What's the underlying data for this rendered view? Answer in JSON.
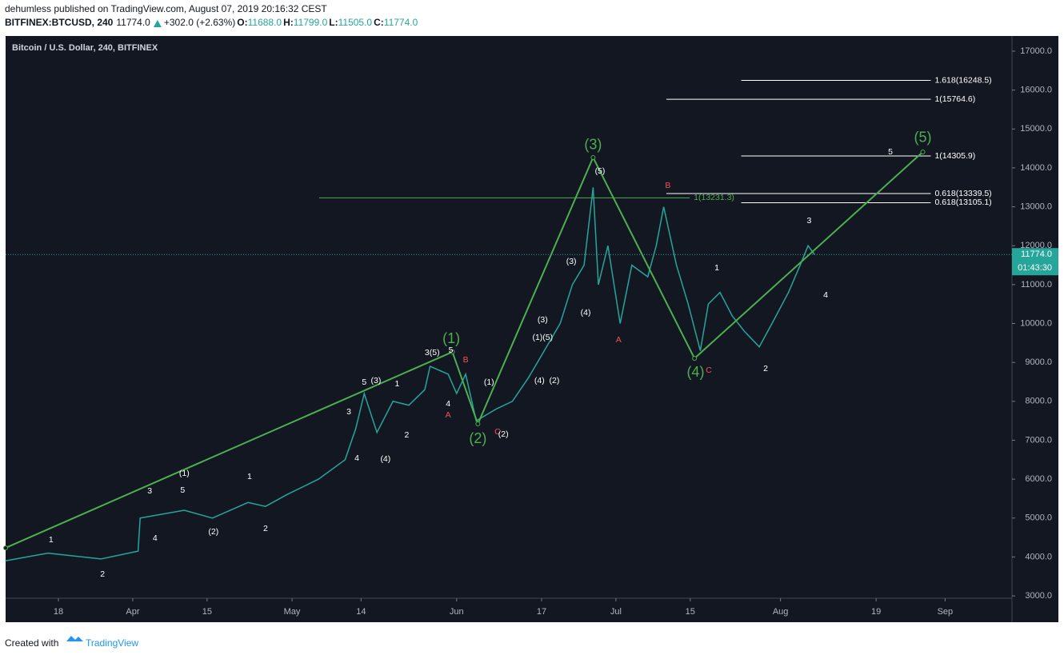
{
  "header": {
    "publisher": "dehumless published on TradingView.com, August 07, 2019 20:16:32 CEST",
    "symbol": "BITFINEX:BTCUSD, 240",
    "price": "11774.0",
    "change": "+302.0 (+2.63%)",
    "ohlc": [
      {
        "key": "O:",
        "value": "11688.0"
      },
      {
        "key": "H:",
        "value": "11799.0"
      },
      {
        "key": "L:",
        "value": "11505.0"
      },
      {
        "key": "C:",
        "value": "11774.0"
      }
    ]
  },
  "footer": {
    "created": "Created with",
    "brand": "TradingView"
  },
  "chart_data": {
    "type": "line",
    "title": "Bitcoin / U.S. Dollar, 240, BITFINEX",
    "color": "#26a69a",
    "x": [
      7,
      15,
      25,
      32,
      32.4,
      40.7,
      46,
      52.7,
      56,
      60,
      66,
      71,
      73,
      74.6,
      77,
      80,
      83,
      86,
      87,
      90.4,
      92,
      93.7,
      95.7,
      99.4,
      102.5,
      105.5,
      108.5,
      111.5,
      113.8,
      116,
      117.7,
      118.7,
      120.5,
      122.8,
      125,
      128,
      129.6,
      131,
      133.4,
      135.6,
      137.9,
      139.4,
      141.6,
      143.9,
      146.2,
      149,
      151.4,
      154.5,
      156.7,
      158.2,
      159.4
    ],
    "values": [
      3900,
      4100,
      3950,
      4150,
      5000,
      5200,
      5000,
      5400,
      5300,
      5600,
      6000,
      6500,
      7300,
      8200,
      7200,
      8000,
      7900,
      8300,
      8900,
      8700,
      8200,
      8700,
      7500,
      7800,
      8000,
      8600,
      9300,
      10000,
      11000,
      11500,
      13500,
      11000,
      12000,
      10000,
      11500,
      11200,
      12000,
      13000,
      11500,
      10500,
      9300,
      10500,
      10800,
      10200,
      9800,
      9400,
      10000,
      10800,
      11500,
      12000,
      11774
    ],
    "xlim": [
      7.05,
      196.6
    ],
    "ylim": [
      2940,
      17390
    ],
    "xticks": [
      {
        "value": 17,
        "label": "18"
      },
      {
        "value": 31,
        "label": "Apr"
      },
      {
        "value": 45,
        "label": "15"
      },
      {
        "value": 61,
        "label": "May"
      },
      {
        "value": 74,
        "label": "14"
      },
      {
        "value": 92,
        "label": "Jun"
      },
      {
        "value": 108,
        "label": "17"
      },
      {
        "value": 122,
        "label": "Jul"
      },
      {
        "value": 136,
        "label": "15"
      },
      {
        "value": 153,
        "label": "Aug"
      },
      {
        "value": 171,
        "label": "19"
      },
      {
        "value": 184,
        "label": "Sep"
      }
    ],
    "yticks": [
      {
        "value": 3000,
        "label": "3000.0"
      },
      {
        "value": 4000,
        "label": "4000.0"
      },
      {
        "value": 5000,
        "label": "5000.0"
      },
      {
        "value": 6000,
        "label": "6000.0"
      },
      {
        "value": 7000,
        "label": "7000.0"
      },
      {
        "value": 8000,
        "label": "8000.0"
      },
      {
        "value": 9000,
        "label": "9000.0"
      },
      {
        "value": 10000,
        "label": "10000.0"
      },
      {
        "value": 11000,
        "label": "11000.0"
      },
      {
        "value": 12000,
        "label": "12000.0"
      },
      {
        "value": 13000,
        "label": "13000.0"
      },
      {
        "value": 14000,
        "label": "14000.0"
      },
      {
        "value": 15000,
        "label": "15000.0"
      },
      {
        "value": 16000,
        "label": "16000.0"
      },
      {
        "value": 17000,
        "label": "17000.0"
      }
    ],
    "last_price": {
      "value": 11774,
      "label": "11774.0",
      "countdown": "01:43:30"
    },
    "wave": {
      "color": "#4caf50",
      "x": [
        7.05,
        91.2,
        96,
        117.7,
        136.8,
        179.8
      ],
      "values": [
        4233,
        9270,
        7420,
        14266,
        9105,
        14410
      ]
    },
    "levels": [
      {
        "value": 16248.5,
        "label": "1.618(16248.5)",
        "start": 145.6,
        "end": 181.3,
        "color": "#ffffff"
      },
      {
        "value": 15764.6,
        "label": "1(15764.6)",
        "start": 131.5,
        "end": 181.3,
        "color": "#ffffff"
      },
      {
        "value": 14305.9,
        "label": "1(14305.9)",
        "start": 145.6,
        "end": 181.3,
        "color": "#ffffff"
      },
      {
        "value": 13339.5,
        "label": "0.618(13339.5)",
        "start": 131.5,
        "end": 181.3,
        "color": "#ffffff"
      },
      {
        "value": 13105.1,
        "label": "0.618(13105.1)",
        "start": 145.6,
        "end": 181.3,
        "color": "#ffffff"
      },
      {
        "value": 13231.3,
        "label": "1(13231.3)",
        "start": 66.1,
        "end": 135.9,
        "color": "#4caf50"
      }
    ],
    "annotations": [
      {
        "text": "1",
        "x": 15.6,
        "y": 4438,
        "color": "#ffffff"
      },
      {
        "text": "2",
        "x": 25.3,
        "y": 3554,
        "color": "#ffffff"
      },
      {
        "text": "3",
        "x": 34.2,
        "y": 5692,
        "color": "#ffffff"
      },
      {
        "text": "4",
        "x": 35.2,
        "y": 4479,
        "color": "#ffffff"
      },
      {
        "text": "5",
        "x": 40.4,
        "y": 5713,
        "color": "#ffffff"
      },
      {
        "text": "(1)",
        "x": 40.7,
        "y": 6144,
        "color": "#ffffff"
      },
      {
        "text": "(2)",
        "x": 46.2,
        "y": 4643,
        "color": "#ffffff"
      },
      {
        "text": "1",
        "x": 53,
        "y": 6061,
        "color": "#ffffff"
      },
      {
        "text": "2",
        "x": 56,
        "y": 4726,
        "color": "#ffffff"
      },
      {
        "text": "3",
        "x": 71.7,
        "y": 7727,
        "color": "#ffffff"
      },
      {
        "text": "4",
        "x": 73.2,
        "y": 6535,
        "color": "#ffffff"
      },
      {
        "text": "5",
        "x": 74.6,
        "y": 8488,
        "color": "#ffffff"
      },
      {
        "text": "(3)",
        "x": 76.8,
        "y": 8529,
        "color": "#ffffff"
      },
      {
        "text": "(4)",
        "x": 78.6,
        "y": 6514,
        "color": "#ffffff"
      },
      {
        "text": "1",
        "x": 80.8,
        "y": 8447,
        "color": "#ffffff"
      },
      {
        "text": "2",
        "x": 82.6,
        "y": 7131,
        "color": "#ffffff"
      },
      {
        "text": "3(5)",
        "x": 87.4,
        "y": 9249,
        "color": "#ffffff"
      },
      {
        "text": "5",
        "x": 90.9,
        "y": 9311,
        "color": "#ffffff"
      },
      {
        "text": "4",
        "x": 90.4,
        "y": 7933,
        "color": "#ffffff"
      },
      {
        "text": "A",
        "x": 90.4,
        "y": 7645,
        "color": "#ef5350"
      },
      {
        "text": "B",
        "x": 93.7,
        "y": 9064,
        "color": "#ef5350"
      },
      {
        "text": "(1)",
        "x": 98.1,
        "y": 8488,
        "color": "#ffffff"
      },
      {
        "text": "C",
        "x": 99.7,
        "y": 7214,
        "color": "#ef5350"
      },
      {
        "text": "(2)",
        "x": 100.8,
        "y": 7152,
        "color": "#ffffff"
      },
      {
        "text": "(3)",
        "x": 108.2,
        "y": 10092,
        "color": "#ffffff"
      },
      {
        "text": "(1)(5)",
        "x": 108.2,
        "y": 9640,
        "color": "#ffffff"
      },
      {
        "text": "(4)",
        "x": 107.6,
        "y": 8529,
        "color": "#ffffff"
      },
      {
        "text": "(2)",
        "x": 110.4,
        "y": 8529,
        "color": "#ffffff"
      },
      {
        "text": "(3)",
        "x": 113.6,
        "y": 11593,
        "color": "#ffffff"
      },
      {
        "text": "(4)",
        "x": 116.3,
        "y": 10277,
        "color": "#ffffff"
      },
      {
        "text": "(5)",
        "x": 119,
        "y": 13916,
        "color": "#ffffff"
      },
      {
        "text": "A",
        "x": 122.5,
        "y": 9578,
        "color": "#ef5350"
      },
      {
        "text": "B",
        "x": 131.8,
        "y": 13546,
        "color": "#ef5350"
      },
      {
        "text": "C",
        "x": 139.5,
        "y": 8796,
        "color": "#ef5350"
      },
      {
        "text": "1",
        "x": 141,
        "y": 11428,
        "color": "#ffffff"
      },
      {
        "text": "2",
        "x": 150.2,
        "y": 8837,
        "color": "#ffffff"
      },
      {
        "text": "3",
        "x": 158.4,
        "y": 12641,
        "color": "#ffffff"
      },
      {
        "text": "4",
        "x": 161.5,
        "y": 10729,
        "color": "#ffffff"
      },
      {
        "text": "5",
        "x": 173.7,
        "y": 14409,
        "color": "#ffffff"
      }
    ],
    "wave_labels": [
      {
        "text": "(1)",
        "x": 91,
        "y": 9598
      },
      {
        "text": "(2)",
        "x": 96,
        "y": 7028
      },
      {
        "text": "(3)",
        "x": 117.7,
        "y": 14574
      },
      {
        "text": "(4)",
        "x": 137,
        "y": 8735
      },
      {
        "text": "(5)",
        "x": 179.8,
        "y": 14759
      }
    ]
  }
}
